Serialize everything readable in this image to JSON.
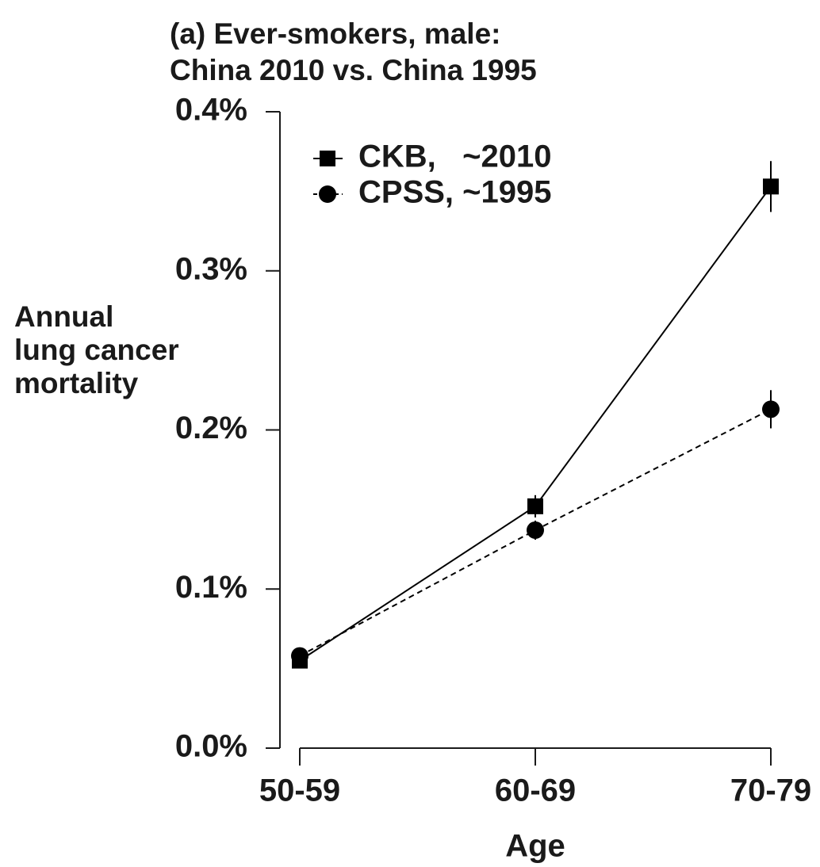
{
  "chart_data": {
    "type": "line",
    "title": [
      "(a) Ever-smokers, male:",
      "China 2010 vs. China 1995"
    ],
    "x_label": "Age",
    "y_label": [
      "Annual",
      "lung cancer",
      "mortality"
    ],
    "categories": [
      "50-59",
      "60-69",
      "70-79"
    ],
    "series": [
      {
        "name": "CKB,   ~2010",
        "color": "#000000",
        "marker": "square",
        "dash": false,
        "values": [
          0.055,
          0.152,
          0.353
        ],
        "errors": [
          0.002,
          0.007,
          0.016
        ]
      },
      {
        "name": "CPSS, ~1995",
        "color": "#000000",
        "marker": "circle",
        "dash": true,
        "values": [
          0.058,
          0.137,
          0.213
        ],
        "errors": [
          0.002,
          0.006,
          0.012
        ]
      }
    ],
    "ylim": [
      0,
      0.4
    ],
    "yticks": [
      {
        "value": 0,
        "label": "0.0%"
      },
      {
        "value": 0.1,
        "label": "0.1%"
      },
      {
        "value": 0.2,
        "label": "0.2%"
      },
      {
        "value": 0.3,
        "label": "0.3%"
      },
      {
        "value": 0.4,
        "label": "0.4%"
      }
    ],
    "legend": "upper left",
    "grid": false
  }
}
